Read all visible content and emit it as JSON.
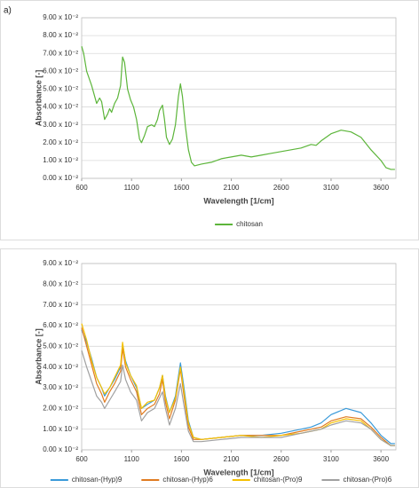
{
  "chart_data": [
    {
      "type": "line",
      "label": "a)",
      "x_label": "Wavelength [1/cm]",
      "y_label": "Absorbance [-]",
      "x": [
        600,
        620,
        650,
        700,
        750,
        780,
        800,
        830,
        860,
        880,
        900,
        930,
        960,
        990,
        1010,
        1030,
        1060,
        1090,
        1120,
        1150,
        1180,
        1200,
        1230,
        1260,
        1300,
        1330,
        1360,
        1380,
        1410,
        1430,
        1450,
        1480,
        1510,
        1540,
        1570,
        1590,
        1610,
        1640,
        1670,
        1700,
        1730,
        1800,
        1900,
        2000,
        2100,
        2200,
        2300,
        2400,
        2500,
        2600,
        2700,
        2800,
        2900,
        2950,
        3000,
        3100,
        3200,
        3300,
        3400,
        3500,
        3600,
        3650,
        3700,
        3740
      ],
      "series": [
        {
          "name": "chitosan",
          "color": "#5cb53a",
          "values": [
            0.074,
            0.07,
            0.06,
            0.052,
            0.042,
            0.045,
            0.043,
            0.033,
            0.036,
            0.039,
            0.037,
            0.042,
            0.045,
            0.052,
            0.068,
            0.065,
            0.05,
            0.044,
            0.04,
            0.033,
            0.022,
            0.02,
            0.024,
            0.029,
            0.03,
            0.029,
            0.033,
            0.038,
            0.041,
            0.033,
            0.023,
            0.019,
            0.022,
            0.03,
            0.046,
            0.053,
            0.046,
            0.029,
            0.016,
            0.009,
            0.007,
            0.008,
            0.009,
            0.011,
            0.012,
            0.013,
            0.012,
            0.013,
            0.014,
            0.015,
            0.016,
            0.017,
            0.019,
            0.0185,
            0.021,
            0.025,
            0.027,
            0.026,
            0.023,
            0.016,
            0.01,
            0.006,
            0.005,
            0.005
          ]
        }
      ],
      "xlim": [
        600,
        3750
      ],
      "xticks": [
        600,
        1100,
        1600,
        2100,
        2600,
        3100,
        3600
      ],
      "ylim": [
        0,
        0.09
      ],
      "yticks": [
        {
          "value": 0,
          "label": "0.00 x 10⁻²"
        },
        {
          "value": 0.01,
          "label": "1.00 x 10⁻²"
        },
        {
          "value": 0.02,
          "label": "2.00 x 10⁻²"
        },
        {
          "value": 0.03,
          "label": "3.00 x 10⁻²"
        },
        {
          "value": 0.04,
          "label": "4.00 x 10⁻²"
        },
        {
          "value": 0.05,
          "label": "5.00 x 10⁻²"
        },
        {
          "value": 0.06,
          "label": "6.00 x 10⁻²"
        },
        {
          "value": 0.07,
          "label": "7.00 x 10⁻²"
        },
        {
          "value": 0.08,
          "label": "8.00 x 10⁻²"
        },
        {
          "value": 0.09,
          "label": "9.00 x 10⁻²"
        }
      ],
      "grid": true
    },
    {
      "type": "line",
      "x_label": "Wavelength [1/cm]",
      "y_label": "Absorbance [-]",
      "x": [
        600,
        650,
        700,
        750,
        800,
        830,
        880,
        930,
        990,
        1010,
        1040,
        1090,
        1150,
        1200,
        1260,
        1330,
        1380,
        1410,
        1440,
        1480,
        1540,
        1590,
        1620,
        1670,
        1720,
        1800,
        2000,
        2200,
        2400,
        2600,
        2800,
        2900,
        3000,
        3100,
        3250,
        3400,
        3500,
        3600,
        3700,
        3740
      ],
      "series": [
        {
          "name": "chitosan-(Hyp)9",
          "color": "#3a9ad9",
          "values": [
            0.058,
            0.052,
            0.044,
            0.035,
            0.03,
            0.026,
            0.03,
            0.034,
            0.04,
            0.051,
            0.043,
            0.036,
            0.03,
            0.02,
            0.022,
            0.024,
            0.03,
            0.036,
            0.026,
            0.018,
            0.026,
            0.042,
            0.032,
            0.014,
            0.006,
            0.005,
            0.006,
            0.007,
            0.007,
            0.008,
            0.01,
            0.011,
            0.013,
            0.017,
            0.02,
            0.018,
            0.013,
            0.007,
            0.003,
            0.003
          ]
        },
        {
          "name": "chitosan-(Hyp)6",
          "color": "#e07b20",
          "values": [
            0.059,
            0.05,
            0.041,
            0.032,
            0.027,
            0.023,
            0.028,
            0.032,
            0.038,
            0.049,
            0.04,
            0.034,
            0.028,
            0.017,
            0.02,
            0.022,
            0.027,
            0.034,
            0.023,
            0.015,
            0.024,
            0.039,
            0.028,
            0.011,
            0.005,
            0.005,
            0.006,
            0.007,
            0.007,
            0.007,
            0.009,
            0.01,
            0.011,
            0.014,
            0.016,
            0.015,
            0.011,
            0.006,
            0.002,
            0.002
          ]
        },
        {
          "name": "chitosan-(Pro)9",
          "color": "#f5c000",
          "values": [
            0.061,
            0.053,
            0.043,
            0.035,
            0.03,
            0.027,
            0.03,
            0.035,
            0.041,
            0.052,
            0.042,
            0.036,
            0.031,
            0.02,
            0.023,
            0.024,
            0.03,
            0.036,
            0.025,
            0.018,
            0.025,
            0.04,
            0.03,
            0.013,
            0.006,
            0.005,
            0.006,
            0.007,
            0.006,
            0.007,
            0.008,
            0.009,
            0.01,
            0.013,
            0.015,
            0.014,
            0.01,
            0.005,
            0.002,
            0.002
          ]
        },
        {
          "name": "chitosan-(Pro)6",
          "color": "#a0a0a0",
          "values": [
            0.048,
            0.04,
            0.033,
            0.026,
            0.023,
            0.02,
            0.024,
            0.028,
            0.033,
            0.041,
            0.034,
            0.028,
            0.024,
            0.014,
            0.018,
            0.02,
            0.025,
            0.028,
            0.02,
            0.012,
            0.02,
            0.032,
            0.023,
            0.009,
            0.004,
            0.004,
            0.005,
            0.006,
            0.006,
            0.006,
            0.008,
            0.009,
            0.01,
            0.012,
            0.014,
            0.013,
            0.01,
            0.005,
            0.002,
            0.002
          ]
        }
      ],
      "xlim": [
        600,
        3750
      ],
      "xticks": [
        600,
        1100,
        1600,
        2100,
        2600,
        3100,
        3600
      ],
      "ylim": [
        0,
        0.09
      ],
      "yticks": [
        {
          "value": 0,
          "label": "0.00 x 10⁻²"
        },
        {
          "value": 0.01,
          "label": "1.00 x 10⁻²"
        },
        {
          "value": 0.02,
          "label": "2.00 x 10⁻²"
        },
        {
          "value": 0.03,
          "label": "3.00 x 10⁻²"
        },
        {
          "value": 0.04,
          "label": "4.00 x 10⁻²"
        },
        {
          "value": 0.05,
          "label": "5.00 x 10⁻²"
        },
        {
          "value": 0.06,
          "label": "6.00 x 10⁻²"
        },
        {
          "value": 0.07,
          "label": "7.00 x 10⁻²"
        },
        {
          "value": 0.08,
          "label": "8.00 x 10⁻²"
        },
        {
          "value": 0.09,
          "label": "9.00 x 10⁻²"
        }
      ],
      "grid": true
    }
  ]
}
